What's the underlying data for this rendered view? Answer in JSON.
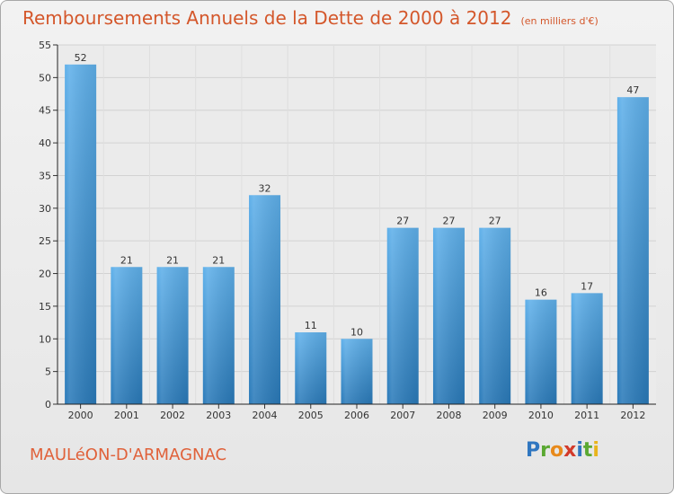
{
  "title": "Remboursements Annuels de la Dette de 2000 à 2012",
  "unit": "(en milliers d'€)",
  "commune": "MAULéON-D'ARMAGNAC",
  "logo": {
    "letters": [
      "P",
      "r",
      "o",
      "x",
      "i",
      "t",
      "i"
    ],
    "colors": [
      "#2f76c0",
      "#5aa832",
      "#e88a1b",
      "#d23a2a",
      "#2f76c0",
      "#5aa832",
      "#e8b41b"
    ]
  },
  "colors": {
    "title": "#d4572b",
    "bar_light": "#5aaae6",
    "bar_dark": "#2878b8",
    "grid": "#d0d0d0",
    "axis": "#222222"
  },
  "chart_data": {
    "type": "bar",
    "title": "Remboursements Annuels de la Dette de 2000 à 2012",
    "subtitle": "(en milliers d'€)",
    "xlabel": "",
    "ylabel": "",
    "categories": [
      "2000",
      "2001",
      "2002",
      "2003",
      "2004",
      "2005",
      "2006",
      "2007",
      "2008",
      "2009",
      "2010",
      "2011",
      "2012"
    ],
    "values": [
      52,
      21,
      21,
      21,
      32,
      11,
      10,
      27,
      27,
      27,
      16,
      17,
      47
    ],
    "ylim": [
      0,
      55
    ],
    "yticks": [
      0,
      5,
      10,
      15,
      20,
      25,
      30,
      35,
      40,
      45,
      50,
      55
    ],
    "grid": true,
    "data_labels": true
  }
}
